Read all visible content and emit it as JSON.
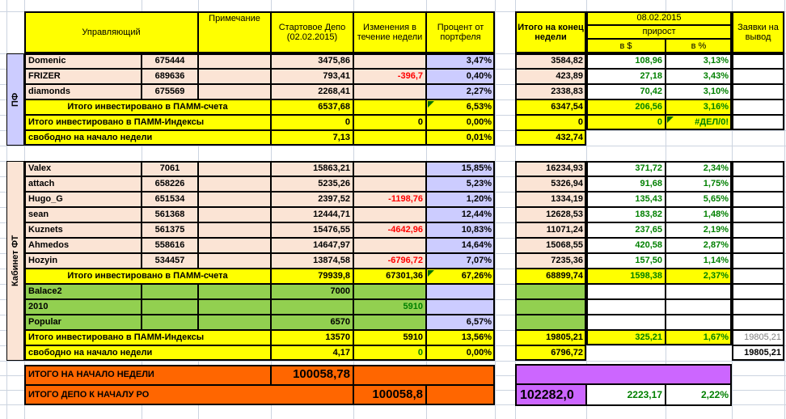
{
  "colors": {
    "yellow": "#ffff00",
    "peach": "#fbe4d5",
    "lav": "#ccccff",
    "green": "#92d050",
    "orange": "#ff6600",
    "purple": "#cc66ff",
    "pos": "#008000",
    "neg": "#ff0000",
    "muted": "#808080",
    "grid": "#ccd4e0"
  },
  "header": {
    "manager": "Управляющий",
    "note": "Примечание",
    "start_depo": "Стартовое Депо (02.02.2015)",
    "week_change": "Изменения в течение недели",
    "portfolio_pct": "Процент от портфеля",
    "week_total": "Итого на конец недели",
    "date": "08.02.2015",
    "growth": "прирост",
    "in_usd": "в $",
    "in_pct": "в %",
    "withdrawals": "Заявки на вывод"
  },
  "sections": [
    {
      "label": "ПФ",
      "accounts": [
        {
          "name": "Domenic",
          "account": "675444",
          "start": "3475,86",
          "change": "",
          "pct": "3,47%",
          "total": "3584,82",
          "usd": "108,96",
          "growth_pct": "3,13%"
        },
        {
          "name": "FRIZER",
          "account": "689636",
          "start": "793,41",
          "change": "-396,7",
          "pct": "0,40%",
          "total": "423,89",
          "usd": "27,18",
          "growth_pct": "3,43%"
        },
        {
          "name": "diamonds",
          "account": "675569",
          "start": "2268,41",
          "change": "",
          "pct": "2,27%",
          "total": "2338,83",
          "usd": "70,42",
          "growth_pct": "3,10%"
        }
      ],
      "index_accounts": [],
      "total_pamm": {
        "label": "Итого инвестировано в ПАММ-счета",
        "start": "6537,68",
        "change": "",
        "pct": "6,53%",
        "total": "6347,54",
        "usd": "206,56",
        "growth_pct": "3,16%"
      },
      "total_index": {
        "label": "Итого инвестировано в ПАММ-Индексы",
        "start": "0",
        "change": "0",
        "pct": "0,00%",
        "total": "0",
        "usd": "0",
        "growth_pct": "#ДЕЛ/0!",
        "withdraw": ""
      },
      "free": {
        "label": "свободно на начало недели",
        "start": "7,13",
        "change": "",
        "pct": "0,01%",
        "total": "432,74",
        "withdraw": ""
      }
    },
    {
      "label": "Кабинет ФТ",
      "accounts": [
        {
          "name": "Valex",
          "account": "7061",
          "start": "15863,21",
          "change": "",
          "pct": "15,85%",
          "total": "16234,93",
          "usd": "371,72",
          "growth_pct": "2,34%"
        },
        {
          "name": "attach",
          "account": "658226",
          "start": "5235,26",
          "change": "",
          "pct": "5,23%",
          "total": "5326,94",
          "usd": "91,68",
          "growth_pct": "1,75%"
        },
        {
          "name": "Hugo_G",
          "account": "651534",
          "start": "2397,52",
          "change": "-1198,76",
          "pct": "1,20%",
          "total": "1334,19",
          "usd": "135,43",
          "growth_pct": "5,65%"
        },
        {
          "name": "sean",
          "account": "561368",
          "start": "12444,71",
          "change": "",
          "pct": "12,44%",
          "total": "12628,53",
          "usd": "183,82",
          "growth_pct": "1,48%"
        },
        {
          "name": "Kuznets",
          "account": "561375",
          "start": "15476,55",
          "change": "-4642,96",
          "pct": "10,83%",
          "total": "11071,24",
          "usd": "237,65",
          "growth_pct": "2,19%"
        },
        {
          "name": "Ahmedos",
          "account": "558616",
          "start": "14647,97",
          "change": "",
          "pct": "14,64%",
          "total": "15068,55",
          "usd": "420,58",
          "growth_pct": "2,87%"
        },
        {
          "name": "Hozyin",
          "account": "534457",
          "start": "13874,58",
          "change": "-6796,72",
          "pct": "7,07%",
          "total": "7235,36",
          "usd": "157,50",
          "growth_pct": "1,14%"
        }
      ],
      "index_accounts": [
        {
          "name": "Balace2",
          "start": "7000",
          "change": "",
          "pct": ""
        },
        {
          "name": "2010",
          "start": "",
          "change": "5910",
          "pct": ""
        },
        {
          "name": "Popular",
          "start": "6570",
          "change": "",
          "pct": "6,57%"
        }
      ],
      "total_pamm": {
        "label": "Итого инвестировано в ПАММ-счета",
        "start": "79939,8",
        "change": "67301,36",
        "pct": "67,26%",
        "total": "68899,74",
        "usd": "1598,38",
        "growth_pct": "2,37%"
      },
      "total_index": {
        "label": "Итого инвестировано в ПАММ-Индексы",
        "start": "13570",
        "change": "5910",
        "pct": "13,56%",
        "total": "19805,21",
        "usd": "325,21",
        "growth_pct": "1,67%",
        "withdraw": "19805,21"
      },
      "free": {
        "label": "свободно на начало недели",
        "start": "4,17",
        "change": "0",
        "pct": "0,00%",
        "total": "6796,72",
        "withdraw": "19805,21"
      }
    }
  ],
  "footer": {
    "rows": [
      {
        "label": "ИТОГО НА НАЧАЛО НЕДЕЛИ",
        "value": "100058,78"
      },
      {
        "label": "ИТОГО ДЕПО К НАЧАЛУ РО",
        "value": "100058,8"
      }
    ],
    "summary": {
      "total": "102282,0",
      "usd": "2223,17",
      "growth_pct": "2,22%"
    }
  }
}
